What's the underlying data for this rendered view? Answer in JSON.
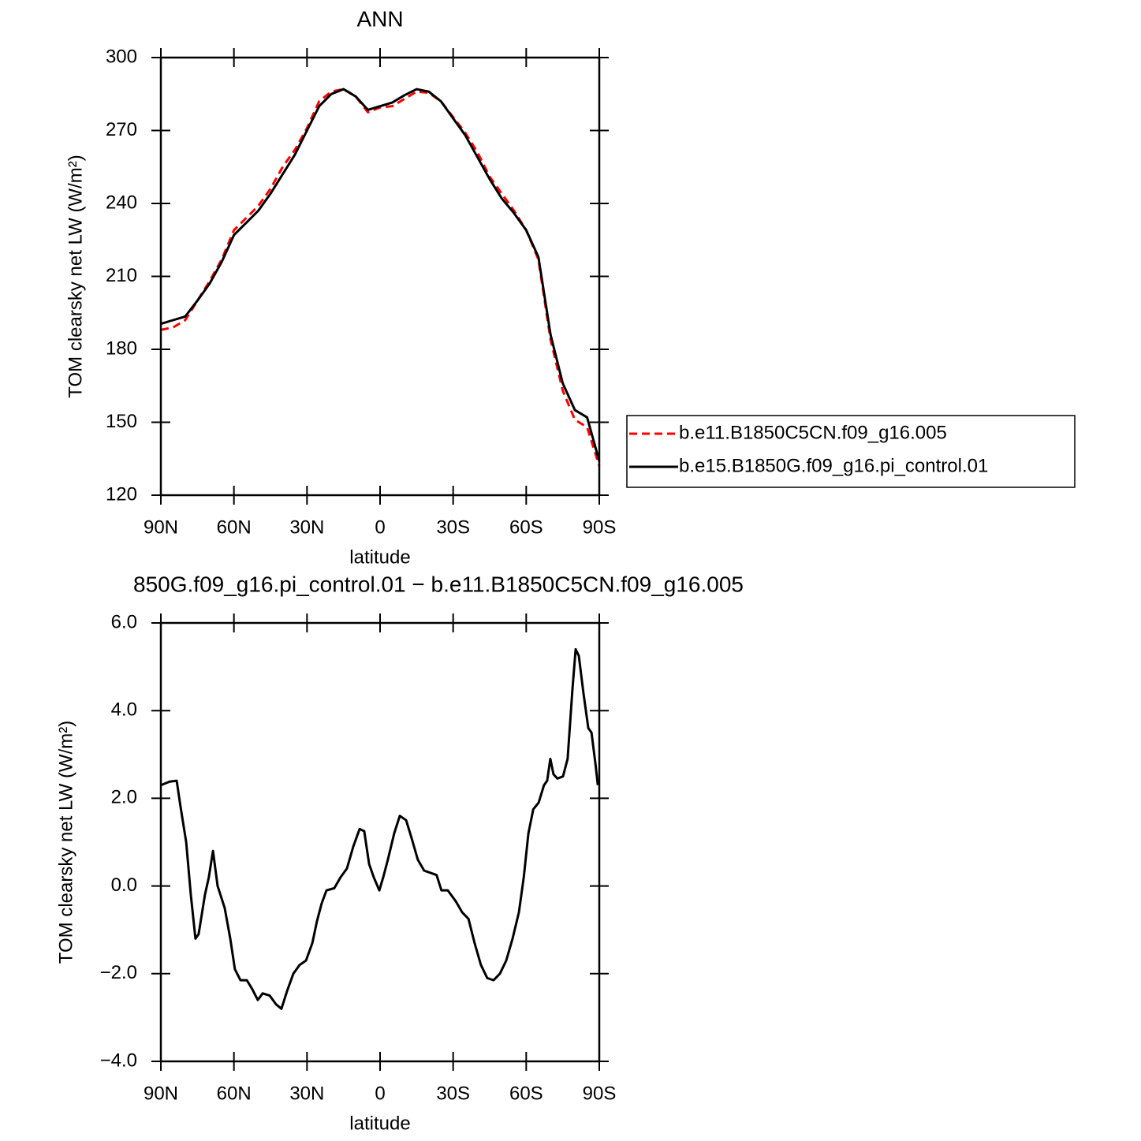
{
  "chart_data": [
    {
      "type": "line",
      "title": "ANN",
      "x_label": "latitude",
      "y_label": "TOM clearsky net LW (W/m²)",
      "xlim": [
        90,
        -90
      ],
      "ylim": [
        120,
        300
      ],
      "xticks": [
        {
          "value": 90,
          "label": "90N"
        },
        {
          "value": 60,
          "label": "60N"
        },
        {
          "value": 30,
          "label": "30N"
        },
        0,
        {
          "value": -30,
          "label": "30S"
        },
        {
          "value": -60,
          "label": "60S"
        },
        {
          "value": -90,
          "label": "90S"
        }
      ],
      "yticks": [
        120,
        150,
        180,
        210,
        240,
        270,
        300
      ],
      "legend": "right",
      "x": [
        90,
        85,
        80,
        75,
        70,
        65,
        60,
        55,
        50,
        45,
        40,
        35,
        30,
        25,
        20,
        15,
        10,
        5,
        0,
        -5,
        -10,
        -15,
        -20,
        -25,
        -30,
        -35,
        -40,
        -45,
        -50,
        -55,
        -60,
        -65,
        -70,
        -75,
        -80,
        -85,
        -90
      ],
      "series": [
        {
          "name": "b.e11.B1850C5CN.f09_g16.005",
          "color": "#ff0000",
          "line_style": "dashed",
          "values": [
            188,
            189,
            192,
            200,
            208,
            217,
            229,
            234,
            239,
            246,
            255,
            262,
            271,
            282,
            286,
            287,
            284,
            277.5,
            279.5,
            280,
            283,
            286,
            285.5,
            282,
            275.5,
            269,
            261,
            251,
            244,
            237,
            229,
            217,
            184,
            163,
            151,
            148,
            132
          ]
        },
        {
          "name": "b.e15.B1850G.f09_g16.pi_control.01",
          "color": "#000000",
          "line_style": "solid",
          "values": [
            190.5,
            192,
            193.5,
            200,
            207,
            216,
            227,
            232,
            237,
            244,
            252,
            260,
            270,
            280,
            285,
            287,
            284,
            278.5,
            280,
            281.5,
            284.5,
            287,
            286,
            282,
            275,
            268,
            259,
            250,
            242,
            236,
            229,
            218,
            186,
            166,
            155,
            152,
            134
          ]
        }
      ]
    },
    {
      "type": "line",
      "title": "850G.f09_g16.pi_control.01 − b.e11.B1850C5CN.f09_g16.005",
      "x_label": "latitude",
      "y_label": "TOM clearsky net LW (W/m²)",
      "xlim": [
        90,
        -90
      ],
      "ylim": [
        -4,
        6
      ],
      "xticks": [
        {
          "value": 90,
          "label": "90N"
        },
        {
          "value": 60,
          "label": "60N"
        },
        {
          "value": 30,
          "label": "30N"
        },
        0,
        {
          "value": -30,
          "label": "30S"
        },
        {
          "value": -60,
          "label": "60S"
        },
        {
          "value": -90,
          "label": "90S"
        }
      ],
      "yticks": [
        {
          "value": -4,
          "label": "−4.0"
        },
        {
          "value": -2,
          "label": "−2.0"
        },
        {
          "value": 0,
          "label": "0.0"
        },
        {
          "value": 2,
          "label": "2.0"
        },
        {
          "value": 4,
          "label": "4.0"
        },
        {
          "value": 6,
          "label": "6.0"
        }
      ],
      "x": [
        90,
        86.4,
        83.5,
        81.9,
        79.6,
        77.7,
        75.8,
        74.5,
        71.9,
        70.3,
        68.6,
        66.7,
        63.8,
        61.5,
        59.6,
        57.3,
        54.7,
        52.5,
        50.2,
        48.2,
        45.3,
        42.7,
        40.5,
        38.2,
        35.6,
        33.0,
        30.4,
        27.8,
        25.9,
        24.0,
        22.0,
        18.8,
        16.2,
        13.6,
        11.0,
        8.4,
        6.5,
        4.5,
        2.6,
        0.3,
        -1.3,
        -3.2,
        -5.8,
        -8.1,
        -10.7,
        -12.9,
        -15.5,
        -18.1,
        -20.7,
        -23.2,
        -25.2,
        -27.8,
        -31.1,
        -33.7,
        -36.3,
        -38.8,
        -41.4,
        -44.0,
        -46.6,
        -49.2,
        -51.8,
        -54.4,
        -57.0,
        -59.0,
        -60.9,
        -62.9,
        -65.1,
        -67.3,
        -68.6,
        -69.9,
        -71.2,
        -72.8,
        -75.1,
        -77.0,
        -79.0,
        -80.3,
        -81.6,
        -83.5,
        -85.5,
        -86.8,
        -88.4,
        -89.4
      ],
      "series": [
        {
          "color": "#000000",
          "line_style": "solid",
          "values": [
            2.3,
            2.38,
            2.4,
            1.8,
            1.0,
            -0.2,
            -1.2,
            -1.1,
            -0.2,
            0.2,
            0.8,
            0.0,
            -0.5,
            -1.2,
            -1.9,
            -2.15,
            -2.15,
            -2.35,
            -2.6,
            -2.45,
            -2.5,
            -2.7,
            -2.8,
            -2.4,
            -2.0,
            -1.8,
            -1.7,
            -1.3,
            -0.8,
            -0.4,
            -0.1,
            -0.05,
            0.2,
            0.4,
            0.9,
            1.3,
            1.25,
            0.5,
            0.2,
            -0.1,
            0.2,
            0.6,
            1.2,
            1.6,
            1.5,
            1.1,
            0.6,
            0.35,
            0.3,
            0.25,
            -0.1,
            -0.1,
            -0.35,
            -0.6,
            -0.75,
            -1.3,
            -1.8,
            -2.1,
            -2.15,
            -2.0,
            -1.7,
            -1.2,
            -0.6,
            0.2,
            1.2,
            1.75,
            1.9,
            2.3,
            2.4,
            2.9,
            2.55,
            2.45,
            2.5,
            2.9,
            4.5,
            5.4,
            5.25,
            4.4,
            3.6,
            3.5,
            2.8,
            2.3
          ]
        }
      ]
    }
  ]
}
